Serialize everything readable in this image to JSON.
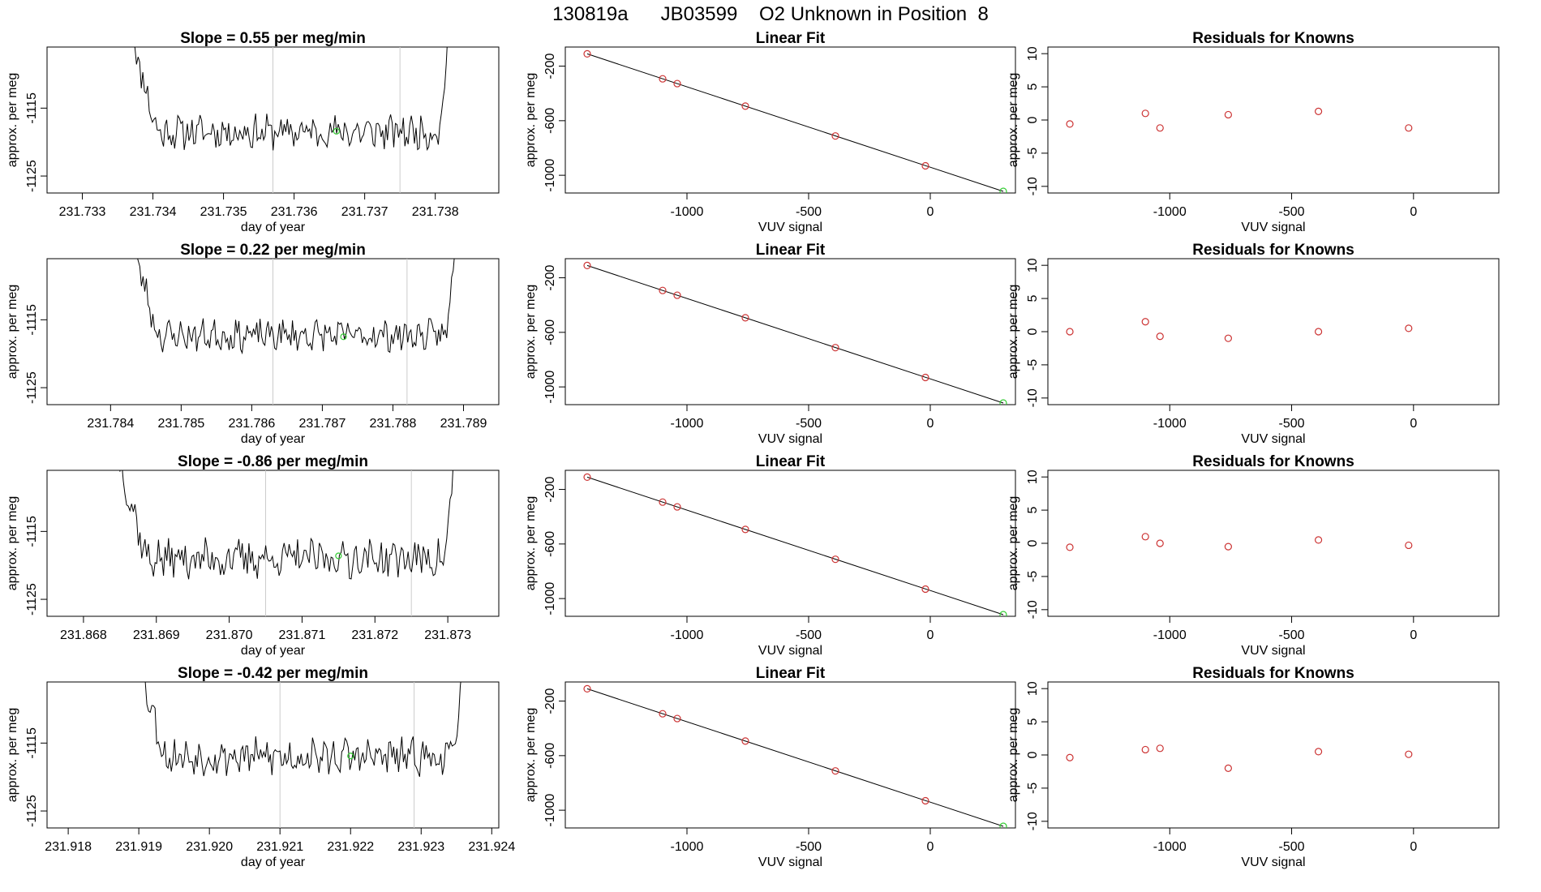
{
  "figure": {
    "title": "130819a      JB03599    O2 Unknown in Position  8"
  },
  "colors": {
    "line": "#000000",
    "known_points": "#cc3333",
    "unknown_point": "#33cc33",
    "vertical_markers": "#cccccc",
    "residual_points": "#cc3333"
  },
  "chart_data": [
    {
      "type": "line",
      "role": "timeseries",
      "title": "Slope =  0.55  per meg/min",
      "xlabel": "day of year",
      "ylabel": "approx. per meg",
      "xlim": [
        231.7325,
        231.7389
      ],
      "ylim": [
        -1127.5,
        -1106.0
      ],
      "xticks": [
        231.733,
        231.734,
        231.735,
        231.736,
        231.737,
        231.738
      ],
      "xtick_labels": [
        "231.733",
        "231.734",
        "231.735",
        "231.736",
        "231.737",
        "231.738"
      ],
      "yticks": [
        -1115,
        -1125
      ],
      "ytick_labels": [
        "-1115",
        "-1125"
      ],
      "vlines": [
        231.7357,
        231.7375
      ],
      "marker": {
        "x": 231.7366,
        "y": -1118.4
      },
      "series_start": 231.7337,
      "series_end": 231.7382,
      "baseline": -1118.5,
      "noise": 1.3,
      "seed": 11
    },
    {
      "type": "scatter",
      "role": "fit",
      "title": "Linear Fit",
      "xlabel": "VUV signal",
      "ylabel": "approx. per meg",
      "xlim": [
        -1500,
        350
      ],
      "ylim": [
        -1130,
        -60
      ],
      "xticks": [
        -1000,
        -500,
        0
      ],
      "xtick_labels": [
        "-1000",
        "-500",
        "0"
      ],
      "yticks": [
        -200,
        -600,
        -1000
      ],
      "ytick_labels": [
        "-200",
        "-600",
        "-1000"
      ],
      "fit_line": {
        "x": [
          -1410,
          300
        ],
        "y": [
          -110,
          -1118
        ]
      },
      "known_points": {
        "x": [
          -1410,
          -1100,
          -1040,
          -760,
          -390,
          -20
        ],
        "y": [
          -110,
          -293,
          -328,
          -493,
          -712,
          -931
        ]
      },
      "unknown_point": {
        "x": 300,
        "y": -1118
      }
    },
    {
      "type": "scatter",
      "role": "residuals",
      "title": "Residuals for Knowns",
      "xlabel": "VUV signal",
      "ylabel": "approx. per meg",
      "xlim": [
        -1500,
        350
      ],
      "ylim": [
        -11,
        11
      ],
      "xticks": [
        -1000,
        -500,
        0
      ],
      "xtick_labels": [
        "-1000",
        "-500",
        "0"
      ],
      "yticks": [
        10,
        5,
        0,
        -5,
        -10
      ],
      "ytick_labels": [
        "10",
        "5",
        "0",
        "-5",
        "-10"
      ],
      "points": {
        "x": [
          -1410,
          -1100,
          -1040,
          -760,
          -390,
          -20
        ],
        "y": [
          -0.6,
          1.0,
          -1.2,
          0.8,
          1.3,
          -1.2
        ]
      }
    },
    {
      "type": "line",
      "role": "timeseries",
      "title": "Slope =  0.22  per meg/min",
      "xlabel": "day of year",
      "ylabel": "approx. per meg",
      "xlim": [
        231.7831,
        231.7895
      ],
      "ylim": [
        -1127.5,
        -1106.0
      ],
      "xticks": [
        231.784,
        231.785,
        231.786,
        231.787,
        231.788,
        231.789
      ],
      "xtick_labels": [
        "231.784",
        "231.785",
        "231.786",
        "231.787",
        "231.788",
        "231.789"
      ],
      "yticks": [
        -1115,
        -1125
      ],
      "ytick_labels": [
        "-1115",
        "-1125"
      ],
      "vlines": [
        231.7863,
        231.7882
      ],
      "marker": {
        "x": 231.7873,
        "y": -1117.5
      },
      "series_start": 231.7843,
      "series_end": 231.7889,
      "baseline": -1117.3,
      "noise": 1.2,
      "seed": 23
    },
    {
      "type": "scatter",
      "role": "fit",
      "title": "Linear Fit",
      "xlabel": "VUV signal",
      "ylabel": "approx. per meg",
      "xlim": [
        -1500,
        350
      ],
      "ylim": [
        -1130,
        -60
      ],
      "xticks": [
        -1000,
        -500,
        0
      ],
      "xtick_labels": [
        "-1000",
        "-500",
        "0"
      ],
      "yticks": [
        -200,
        -600,
        -1000
      ],
      "ytick_labels": [
        "-200",
        "-600",
        "-1000"
      ],
      "fit_line": {
        "x": [
          -1410,
          300
        ],
        "y": [
          -110,
          -1118
        ]
      },
      "known_points": {
        "x": [
          -1410,
          -1100,
          -1040,
          -760,
          -390,
          -20
        ],
        "y": [
          -110,
          -293,
          -328,
          -493,
          -712,
          -931
        ]
      },
      "unknown_point": {
        "x": 300,
        "y": -1118
      }
    },
    {
      "type": "scatter",
      "role": "residuals",
      "title": "Residuals for Knowns",
      "xlabel": "VUV signal",
      "ylabel": "approx. per meg",
      "xlim": [
        -1500,
        350
      ],
      "ylim": [
        -11,
        11
      ],
      "xticks": [
        -1000,
        -500,
        0
      ],
      "xtick_labels": [
        "-1000",
        "-500",
        "0"
      ],
      "yticks": [
        10,
        5,
        0,
        -5,
        -10
      ],
      "ytick_labels": [
        "10",
        "5",
        "0",
        "-5",
        "-10"
      ],
      "points": {
        "x": [
          -1410,
          -1100,
          -1040,
          -760,
          -390,
          -20
        ],
        "y": [
          0.0,
          1.5,
          -0.7,
          -1.0,
          0.0,
          0.5
        ]
      }
    },
    {
      "type": "line",
      "role": "timeseries",
      "title": "Slope =  -0.86  per meg/min",
      "xlabel": "day of year",
      "ylabel": "approx. per meg",
      "xlim": [
        231.8675,
        231.8737
      ],
      "ylim": [
        -1127.5,
        -1106.0
      ],
      "xticks": [
        231.868,
        231.869,
        231.87,
        231.871,
        231.872,
        231.873
      ],
      "xtick_labels": [
        "231.868",
        "231.869",
        "231.870",
        "231.871",
        "231.872",
        "231.873"
      ],
      "yticks": [
        -1115,
        -1125
      ],
      "ytick_labels": [
        "-1115",
        "-1125"
      ],
      "vlines": [
        231.8705,
        231.8725
      ],
      "marker": {
        "x": 231.8715,
        "y": -1118.6
      },
      "series_start": 231.8685,
      "series_end": 231.8731,
      "baseline": -1119.0,
      "noise": 1.5,
      "seed": 37
    },
    {
      "type": "scatter",
      "role": "fit",
      "title": "Linear Fit",
      "xlabel": "VUV signal",
      "ylabel": "approx. per meg",
      "xlim": [
        -1500,
        350
      ],
      "ylim": [
        -1130,
        -60
      ],
      "xticks": [
        -1000,
        -500,
        0
      ],
      "xtick_labels": [
        "-1000",
        "-500",
        "0"
      ],
      "yticks": [
        -200,
        -600,
        -1000
      ],
      "ytick_labels": [
        "-200",
        "-600",
        "-1000"
      ],
      "fit_line": {
        "x": [
          -1410,
          300
        ],
        "y": [
          -110,
          -1118
        ]
      },
      "known_points": {
        "x": [
          -1410,
          -1100,
          -1040,
          -760,
          -390,
          -20
        ],
        "y": [
          -110,
          -293,
          -328,
          -493,
          -712,
          -931
        ]
      },
      "unknown_point": {
        "x": 300,
        "y": -1118
      }
    },
    {
      "type": "scatter",
      "role": "residuals",
      "title": "Residuals for Knowns",
      "xlabel": "VUV signal",
      "ylabel": "approx. per meg",
      "xlim": [
        -1500,
        350
      ],
      "ylim": [
        -11,
        11
      ],
      "xticks": [
        -1000,
        -500,
        0
      ],
      "xtick_labels": [
        "-1000",
        "-500",
        "0"
      ],
      "yticks": [
        10,
        5,
        0,
        -5,
        -10
      ],
      "ytick_labels": [
        "10",
        "5",
        "0",
        "-5",
        "-10"
      ],
      "points": {
        "x": [
          -1410,
          -1100,
          -1040,
          -760,
          -390,
          -20
        ],
        "y": [
          -0.6,
          1.0,
          0.0,
          -0.5,
          0.5,
          -0.3
        ]
      }
    },
    {
      "type": "line",
      "role": "timeseries",
      "title": "Slope =  -0.42  per meg/min",
      "xlabel": "day of year",
      "ylabel": "approx. per meg",
      "xlim": [
        231.9177,
        231.9241
      ],
      "ylim": [
        -1127.5,
        -1106.0
      ],
      "xticks": [
        231.918,
        231.919,
        231.92,
        231.921,
        231.922,
        231.923,
        231.924
      ],
      "xtick_labels": [
        "231.918",
        "231.919",
        "231.920",
        "231.921",
        "231.922",
        "231.923",
        "231.924"
      ],
      "yticks": [
        -1115,
        -1125
      ],
      "ytick_labels": [
        "-1115",
        "-1125"
      ],
      "vlines": [
        231.921,
        231.9229
      ],
      "marker": {
        "x": 231.922,
        "y": -1116.9
      },
      "series_start": 231.919,
      "series_end": 231.9236,
      "baseline": -1117.0,
      "noise": 1.4,
      "seed": 53
    },
    {
      "type": "scatter",
      "role": "fit",
      "title": "Linear Fit",
      "xlabel": "VUV signal",
      "ylabel": "approx. per meg",
      "xlim": [
        -1500,
        350
      ],
      "ylim": [
        -1130,
        -60
      ],
      "xticks": [
        -1000,
        -500,
        0
      ],
      "xtick_labels": [
        "-1000",
        "-500",
        "0"
      ],
      "yticks": [
        -200,
        -600,
        -1000
      ],
      "ytick_labels": [
        "-200",
        "-600",
        "-1000"
      ],
      "fit_line": {
        "x": [
          -1410,
          300
        ],
        "y": [
          -110,
          -1118
        ]
      },
      "known_points": {
        "x": [
          -1410,
          -1100,
          -1040,
          -760,
          -390,
          -20
        ],
        "y": [
          -110,
          -293,
          -328,
          -493,
          -712,
          -931
        ]
      },
      "unknown_point": {
        "x": 300,
        "y": -1118
      }
    },
    {
      "type": "scatter",
      "role": "residuals",
      "title": "Residuals for Knowns",
      "xlabel": "VUV signal",
      "ylabel": "approx. per meg",
      "xlim": [
        -1500,
        350
      ],
      "ylim": [
        -11,
        11
      ],
      "xticks": [
        -1000,
        -500,
        0
      ],
      "xtick_labels": [
        "-1000",
        "-500",
        "0"
      ],
      "yticks": [
        10,
        5,
        0,
        -5,
        -10
      ],
      "ytick_labels": [
        "10",
        "5",
        "0",
        "-5",
        "-10"
      ],
      "points": {
        "x": [
          -1410,
          -1100,
          -1040,
          -760,
          -390,
          -20
        ],
        "y": [
          -0.4,
          0.8,
          1.0,
          -2.0,
          0.5,
          0.1
        ]
      }
    }
  ]
}
